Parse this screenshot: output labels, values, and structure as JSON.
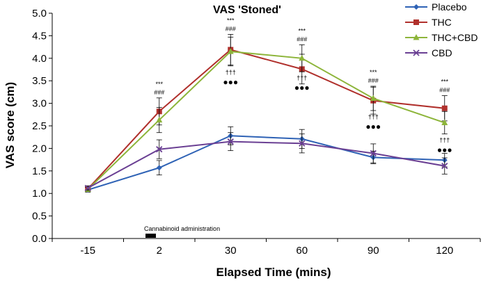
{
  "chart_data": {
    "type": "line",
    "title": "VAS 'Stoned'",
    "xlabel": "Elapsed Time (mins)",
    "ylabel": "VAS score (cm)",
    "categories": [
      "-15",
      "2",
      "30",
      "60",
      "90",
      "120"
    ],
    "ylim": [
      0,
      5
    ],
    "yticks": [
      "0.0",
      "0.5",
      "1.0",
      "1.5",
      "2.0",
      "2.5",
      "3.0",
      "3.5",
      "4.0",
      "4.5",
      "5.0"
    ],
    "grid": false,
    "legend_position": "top-right",
    "series": [
      {
        "name": "Placebo",
        "color": "#2E62B5",
        "marker": "diamond",
        "values": [
          1.08,
          1.57,
          2.28,
          2.21,
          1.8,
          1.74
        ],
        "errors": [
          0.05,
          0.16,
          0.2,
          0.21,
          0.14,
          0.15
        ]
      },
      {
        "name": "THC",
        "color": "#B0302C",
        "marker": "square",
        "values": [
          1.1,
          2.82,
          4.19,
          3.76,
          3.06,
          2.89
        ],
        "errors": [
          0.05,
          0.3,
          0.34,
          0.33,
          0.3,
          0.28
        ]
      },
      {
        "name": "THC+CBD",
        "color": "#8DB53A",
        "marker": "triangle",
        "values": [
          1.09,
          2.63,
          4.15,
          4.0,
          3.11,
          2.57
        ],
        "errors": [
          0.05,
          0.28,
          0.32,
          0.3,
          0.27,
          0.25
        ]
      },
      {
        "name": "CBD",
        "color": "#6A3F93",
        "marker": "x",
        "values": [
          1.12,
          1.98,
          2.15,
          2.11,
          1.89,
          1.61
        ],
        "errors": [
          0.05,
          0.21,
          0.2,
          0.21,
          0.21,
          0.18
        ]
      }
    ],
    "annotations": [
      {
        "category_index": 1,
        "lines": [
          "***",
          "###"
        ]
      },
      {
        "category_index": 2,
        "lines": [
          "***",
          "###"
        ]
      },
      {
        "category_index": 3,
        "lines": [
          "***",
          "###"
        ]
      },
      {
        "category_index": 4,
        "lines": [
          "***",
          "###"
        ]
      },
      {
        "category_index": 5,
        "lines": [
          "***",
          "###"
        ]
      }
    ],
    "lower_annotations": [
      {
        "category_index": 2,
        "lines": [
          "†††",
          "●●●"
        ]
      },
      {
        "category_index": 3,
        "lines": [
          "†††",
          "●●●"
        ]
      },
      {
        "category_index": 4,
        "lines": [
          "†††",
          "●●●"
        ]
      },
      {
        "category_index": 5,
        "lines": [
          "†††",
          "●●●"
        ]
      }
    ],
    "administration_label": "Cannabinoid administration"
  }
}
